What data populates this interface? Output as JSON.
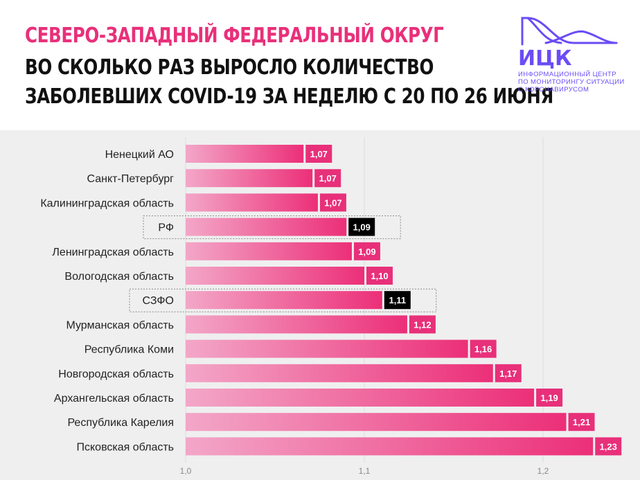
{
  "header": {
    "title_line1": "СЕВЕРО-ЗАПАДНЫЙ ФЕДЕРАЛЬНЫЙ ОКРУГ",
    "title_line2": "ВО СКОЛЬКО РАЗ ВЫРОСЛО КОЛИЧЕСТВО",
    "title_line3": "ЗАБОЛЕВШИХ COVID-19 ЗА НЕДЕЛЮ С 20 ПО 26 ИЮНЯ"
  },
  "logo": {
    "name": "ИЦК",
    "caption_lines": [
      "ИНФОРМАЦИОННЫЙ ЦЕНТР",
      "ПО МОНИТОРИНГУ СИТУАЦИИ",
      "С КОРОНАВИРУСОМ"
    ]
  },
  "colors": {
    "accent": "#e8307a",
    "bar_start": "#f3a7c8",
    "bar_end": "#ec2f78",
    "highlight_label": "#000000",
    "logo": "#6b4cf6",
    "plot_background": "#efefef"
  },
  "chart_data": {
    "type": "bar",
    "orientation": "horizontal",
    "categories": [
      "Ненецкий АО",
      "Санкт-Петербург",
      "Калининградская область",
      "РФ",
      "Ленинградская область",
      "Вологодская область",
      "СЗФО",
      "Мурманская область",
      "Республика Коми",
      "Новгородская область",
      "Архангельская область",
      "Республика Карелия",
      "Псковская область"
    ],
    "values": [
      1.066,
      1.071,
      1.074,
      1.09,
      1.093,
      1.1,
      1.11,
      1.124,
      1.158,
      1.172,
      1.195,
      1.213,
      1.228
    ],
    "value_labels": [
      "1,07",
      "1,07",
      "1,07",
      "1,09",
      "1,09",
      "1,10",
      "1,11",
      "1,12",
      "1,16",
      "1,17",
      "1,19",
      "1,21",
      "1,23"
    ],
    "highlighted": [
      "РФ",
      "СЗФО"
    ],
    "xlim": [
      1.0,
      1.23
    ],
    "xticks": [
      1.0,
      1.1,
      1.2
    ],
    "xtick_labels": [
      "1,0",
      "1,1",
      "1,2"
    ],
    "grid": "vertical",
    "legend": "none"
  }
}
